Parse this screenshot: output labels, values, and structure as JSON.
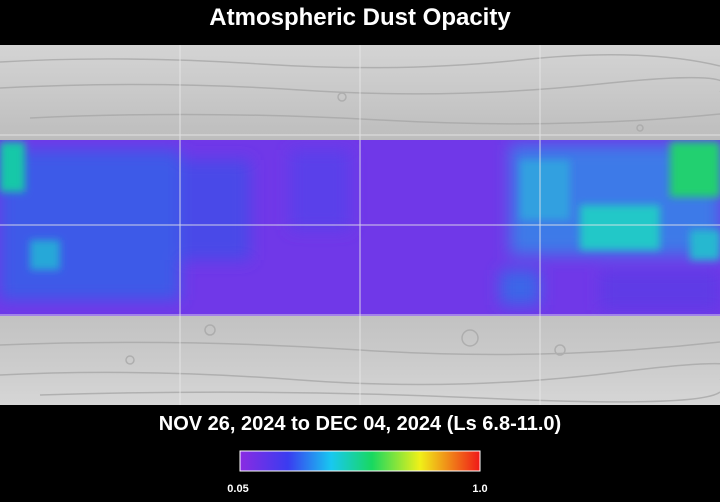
{
  "title": "Atmospheric Dust Opacity",
  "subtitle": "NOV 26, 2024 to DEC 04, 2024 (Ls 6.8-11.0)",
  "colorbar": {
    "labels": [
      "0.05",
      "1.0"
    ]
  }
}
